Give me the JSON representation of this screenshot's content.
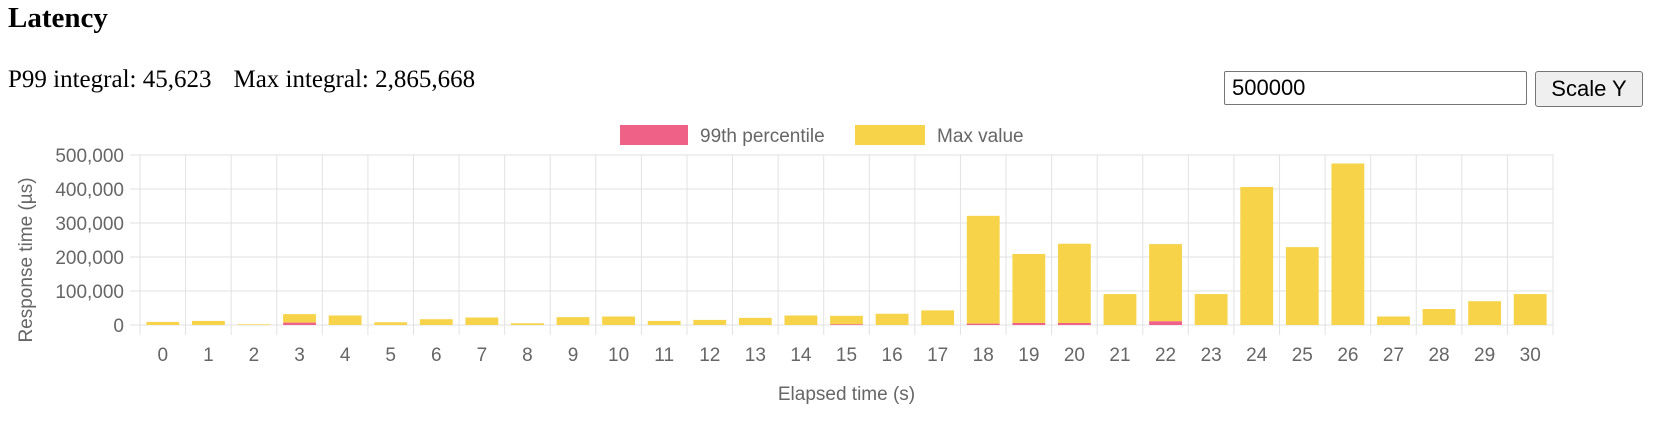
{
  "header": {
    "title": "Latency"
  },
  "stats": {
    "p99_label": "P99 integral:",
    "p99_value": "45,623",
    "max_label": "Max integral:",
    "max_value": "2,865,668"
  },
  "controls": {
    "scale_input_value": "500000",
    "scale_button_label": "Scale Y"
  },
  "colors": {
    "p99": "#f06188",
    "max": "#f6d348",
    "grid": "#e2e2e2",
    "axis_text": "#666666"
  },
  "chart_data": {
    "type": "bar",
    "stacked": true,
    "title": "",
    "xlabel": "Elapsed time (s)",
    "ylabel": "Response time (µs)",
    "ylim": [
      0,
      500000
    ],
    "yticks": [
      0,
      100000,
      200000,
      300000,
      400000,
      500000
    ],
    "ytick_labels": [
      "0",
      "100,000",
      "200,000",
      "300,000",
      "400,000",
      "500,000"
    ],
    "categories": [
      "0",
      "1",
      "2",
      "3",
      "4",
      "5",
      "6",
      "7",
      "8",
      "9",
      "10",
      "11",
      "12",
      "13",
      "14",
      "15",
      "16",
      "17",
      "18",
      "19",
      "20",
      "21",
      "22",
      "23",
      "24",
      "25",
      "26",
      "27",
      "28",
      "29",
      "30"
    ],
    "grid": true,
    "legend_position": "top-center",
    "series": [
      {
        "name": "99th percentile",
        "color": "#f06188",
        "values": [
          0,
          0,
          0,
          7000,
          0,
          0,
          0,
          0,
          0,
          0,
          0,
          0,
          0,
          0,
          0,
          2000,
          0,
          0,
          4000,
          6000,
          6000,
          0,
          11000,
          0,
          0,
          0,
          0,
          0,
          0,
          0,
          0
        ]
      },
      {
        "name": "Max value",
        "color": "#f6d348",
        "values": [
          9000,
          12000,
          2000,
          25000,
          28000,
          8000,
          17000,
          22000,
          5000,
          23000,
          25000,
          12000,
          15000,
          21000,
          28000,
          25000,
          33000,
          43000,
          317000,
          203000,
          233000,
          91000,
          227000,
          91000,
          406000,
          229000,
          475000,
          25000,
          47000,
          70000,
          91000
        ]
      }
    ]
  }
}
